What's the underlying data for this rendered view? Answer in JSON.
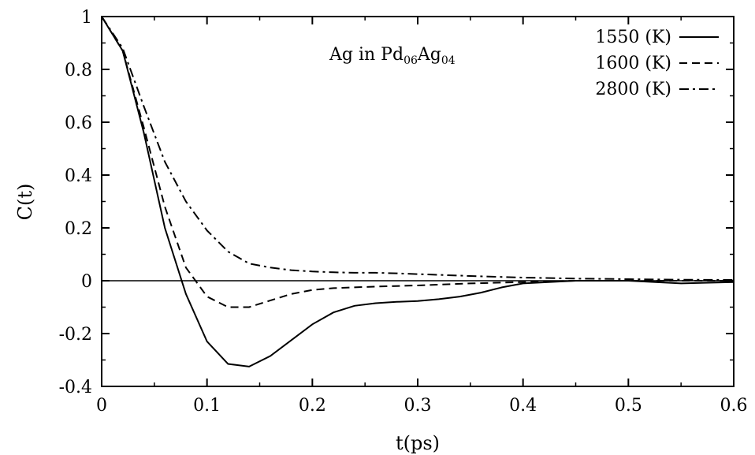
{
  "chart_data": {
    "type": "line",
    "xlabel": "t(ps)",
    "ylabel": "C(t)",
    "xlim": [
      0,
      0.6
    ],
    "ylim": [
      -0.4,
      1
    ],
    "xticks": [
      "0",
      "0.1",
      "0.2",
      "0.3",
      "0.4",
      "0.5",
      "0.6"
    ],
    "yticks": [
      "-0.4",
      "-0.2",
      "0",
      "0.2",
      "0.4",
      "0.6",
      "0.8",
      "1"
    ],
    "grid": false,
    "legend_position": "top-right",
    "annotation": {
      "parts": [
        {
          "text": "Ag in Pd",
          "sub": false
        },
        {
          "text": "06",
          "sub": true
        },
        {
          "text": "Ag",
          "sub": false
        },
        {
          "text": "04",
          "sub": true
        }
      ]
    },
    "series": [
      {
        "name": "1550 (K)",
        "dash": "solid",
        "x": [
          0,
          0.02,
          0.04,
          0.06,
          0.08,
          0.1,
          0.12,
          0.14,
          0.16,
          0.18,
          0.2,
          0.22,
          0.24,
          0.26,
          0.28,
          0.3,
          0.32,
          0.34,
          0.36,
          0.38,
          0.4,
          0.45,
          0.5,
          0.55,
          0.6
        ],
        "y": [
          1.0,
          0.87,
          0.56,
          0.2,
          -0.05,
          -0.23,
          -0.315,
          -0.325,
          -0.285,
          -0.225,
          -0.165,
          -0.12,
          -0.095,
          -0.085,
          -0.08,
          -0.077,
          -0.07,
          -0.06,
          -0.045,
          -0.025,
          -0.01,
          0.0,
          0.0,
          -0.01,
          -0.005
        ]
      },
      {
        "name": "1600 (K)",
        "dash": "dashed",
        "x": [
          0,
          0.02,
          0.04,
          0.06,
          0.08,
          0.1,
          0.12,
          0.14,
          0.16,
          0.18,
          0.2,
          0.22,
          0.24,
          0.26,
          0.28,
          0.3,
          0.35,
          0.4,
          0.45,
          0.5,
          0.55,
          0.6
        ],
        "y": [
          1.0,
          0.87,
          0.58,
          0.28,
          0.05,
          -0.06,
          -0.1,
          -0.1,
          -0.075,
          -0.05,
          -0.035,
          -0.028,
          -0.025,
          -0.022,
          -0.02,
          -0.018,
          -0.01,
          -0.005,
          0.0,
          0.0,
          0.0,
          0.0
        ]
      },
      {
        "name": "2800 (K)",
        "dash": "dashdot",
        "x": [
          0,
          0.02,
          0.04,
          0.06,
          0.08,
          0.1,
          0.12,
          0.14,
          0.16,
          0.18,
          0.2,
          0.22,
          0.24,
          0.26,
          0.28,
          0.3,
          0.35,
          0.4,
          0.45,
          0.5,
          0.55,
          0.6
        ],
        "y": [
          1.0,
          0.88,
          0.66,
          0.45,
          0.3,
          0.19,
          0.11,
          0.065,
          0.05,
          0.04,
          0.035,
          0.032,
          0.03,
          0.03,
          0.028,
          0.025,
          0.018,
          0.012,
          0.008,
          0.006,
          0.004,
          0.003
        ]
      }
    ]
  }
}
